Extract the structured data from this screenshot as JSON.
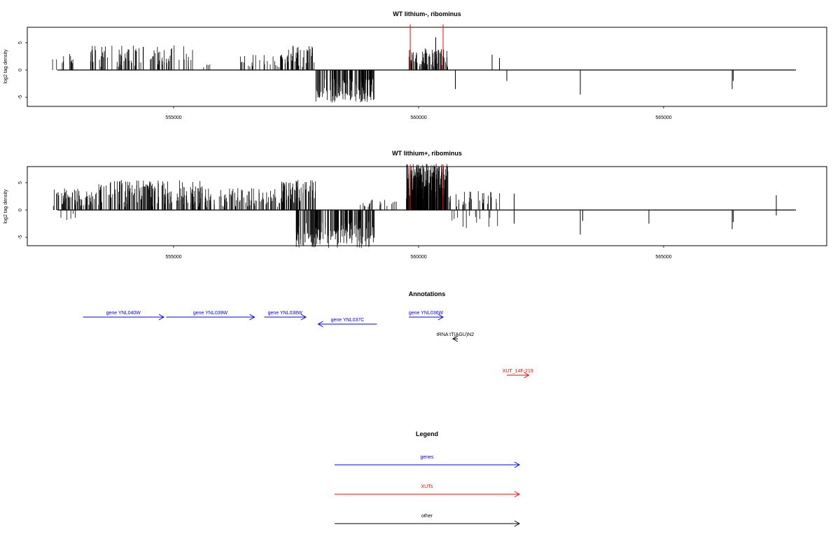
{
  "colors": {
    "gene": "#0000ff",
    "xut": "#ff0000",
    "other": "#000000",
    "marker": "#ff0000",
    "bars": "#000000"
  },
  "chart_data": [
    {
      "type": "bar",
      "title": "WT lithium-, ribominus",
      "ylabel": "log2 tag density",
      "xlim": [
        552400,
        567700
      ],
      "ylim": [
        -8,
        9.5
      ],
      "xticks": [
        555000,
        560000,
        565000
      ],
      "xtick_labels": [
        "555000",
        "560000",
        "565000"
      ],
      "yticks": [
        -5,
        0,
        5
      ],
      "ytick_labels": [
        "-5",
        "0",
        "5"
      ],
      "markers": [
        {
          "x": 559830,
          "y": 9
        },
        {
          "x": 560500,
          "y": 9
        }
      ],
      "segments": [
        {
          "from": 552500,
          "to": 553000,
          "n": 12,
          "min": 0.5,
          "max": 3.2,
          "sign": 1,
          "density": 0.7
        },
        {
          "from": 553300,
          "to": 555400,
          "n": 95,
          "min": 0.5,
          "max": 4.5,
          "sign": 1,
          "density": 0.8
        },
        {
          "from": 555600,
          "to": 555800,
          "n": 4,
          "min": 0.5,
          "max": 1.5,
          "sign": 1,
          "density": 1
        },
        {
          "from": 556200,
          "to": 557200,
          "n": 25,
          "min": 0.5,
          "max": 2.8,
          "sign": 1,
          "density": 0.7
        },
        {
          "from": 557200,
          "to": 557900,
          "n": 50,
          "min": 0.5,
          "max": 4.5,
          "sign": 1,
          "density": 0.9
        },
        {
          "from": 557900,
          "to": 559100,
          "n": 140,
          "min": 1.5,
          "max": 6.0,
          "sign": -1,
          "density": 1
        },
        {
          "from": 559800,
          "to": 560600,
          "n": 75,
          "min": 0.5,
          "max": 4.0,
          "sign": 1,
          "density": 1
        }
      ],
      "spikes": [
        {
          "x": 560350,
          "y": 6.0
        },
        {
          "x": 560750,
          "y": -3.5
        },
        {
          "x": 561500,
          "y": 2.8
        },
        {
          "x": 561650,
          "y": 2.2
        },
        {
          "x": 561800,
          "y": -2.0
        },
        {
          "x": 563300,
          "y": -4.5
        },
        {
          "x": 566400,
          "y": -3.5
        },
        {
          "x": 566420,
          "y": -2.0
        }
      ]
    },
    {
      "type": "bar",
      "title": "WT lithium+, ribominus",
      "ylabel": "log2 tag density",
      "xlim": [
        552400,
        567700
      ],
      "ylim": [
        -8,
        9.5
      ],
      "xticks": [
        555000,
        560000,
        565000
      ],
      "xtick_labels": [
        "555000",
        "560000",
        "565000"
      ],
      "yticks": [
        -5,
        0,
        5
      ],
      "ytick_labels": [
        "-5",
        "0",
        "5"
      ],
      "markers": [
        {
          "x": 559830,
          "y": 9
        },
        {
          "x": 560500,
          "y": 9
        }
      ],
      "segments": [
        {
          "from": 552500,
          "to": 553400,
          "n": 60,
          "min": 0.5,
          "max": 4.0,
          "sign": 1,
          "density": 1
        },
        {
          "from": 552700,
          "to": 553000,
          "n": 5,
          "min": 0.5,
          "max": 2.0,
          "sign": -1,
          "density": 1
        },
        {
          "from": 553400,
          "to": 555600,
          "n": 180,
          "min": 0.5,
          "max": 5.5,
          "sign": 1,
          "density": 1
        },
        {
          "from": 555600,
          "to": 557200,
          "n": 90,
          "min": 0.5,
          "max": 4.0,
          "sign": 1,
          "density": 1
        },
        {
          "from": 557200,
          "to": 557900,
          "n": 70,
          "min": 1.0,
          "max": 5.5,
          "sign": 1,
          "density": 1
        },
        {
          "from": 557500,
          "to": 559100,
          "n": 170,
          "min": 1.5,
          "max": 7.0,
          "sign": -1,
          "density": 1
        },
        {
          "from": 558800,
          "to": 559600,
          "n": 20,
          "min": 0.5,
          "max": 2.0,
          "sign": 1,
          "density": 1
        },
        {
          "from": 559750,
          "to": 560600,
          "n": 240,
          "min": 2.0,
          "max": 8.5,
          "sign": 1,
          "density": 1
        },
        {
          "from": 560600,
          "to": 561700,
          "n": 35,
          "min": 0.5,
          "max": 3.5,
          "sign": 1,
          "density": 1
        },
        {
          "from": 560600,
          "to": 561700,
          "n": 12,
          "min": 1.0,
          "max": 4.0,
          "sign": -1,
          "density": 1
        }
      ],
      "spikes": [
        {
          "x": 561950,
          "y": 3.0
        },
        {
          "x": 561950,
          "y": -2.5
        },
        {
          "x": 563300,
          "y": -4.5
        },
        {
          "x": 563350,
          "y": -2.0
        },
        {
          "x": 564700,
          "y": -2.5
        },
        {
          "x": 566400,
          "y": -3.5
        },
        {
          "x": 566420,
          "y": -2.2
        },
        {
          "x": 567300,
          "y": 2.7
        },
        {
          "x": 567300,
          "y": -1.0
        }
      ]
    }
  ],
  "annotations": {
    "title": "Annotations",
    "xlim": [
      552400,
      567700
    ],
    "items": [
      {
        "label": "gene YNL040W",
        "kind": "gene",
        "start": 553150,
        "end": 554800,
        "dir": 1,
        "row": 0
      },
      {
        "label": "gene YNL039W",
        "kind": "gene",
        "start": 554850,
        "end": 556650,
        "dir": 1,
        "row": 0
      },
      {
        "label": "gene YNL038W",
        "kind": "gene",
        "start": 556850,
        "end": 557700,
        "dir": 1,
        "row": 0
      },
      {
        "label": "gene YNL037C",
        "kind": "gene",
        "start": 557950,
        "end": 559150,
        "dir": -1,
        "row": 1
      },
      {
        "label": "gene YNL036W",
        "kind": "gene",
        "start": 559800,
        "end": 560500,
        "dir": 1,
        "row": 0
      },
      {
        "label": "tRNA tT(AGU)N2",
        "kind": "other",
        "start": 560700,
        "end": 560800,
        "dir": -1,
        "row": 2
      },
      {
        "label": "XUT_14F-219",
        "kind": "xut",
        "start": 561800,
        "end": 562250,
        "dir": 1,
        "row": 3
      }
    ]
  },
  "legend": {
    "title": "Legend",
    "items": [
      {
        "label": "genes",
        "kind": "gene"
      },
      {
        "label": "XUTs",
        "kind": "xut"
      },
      {
        "label": "other",
        "kind": "other"
      }
    ]
  }
}
